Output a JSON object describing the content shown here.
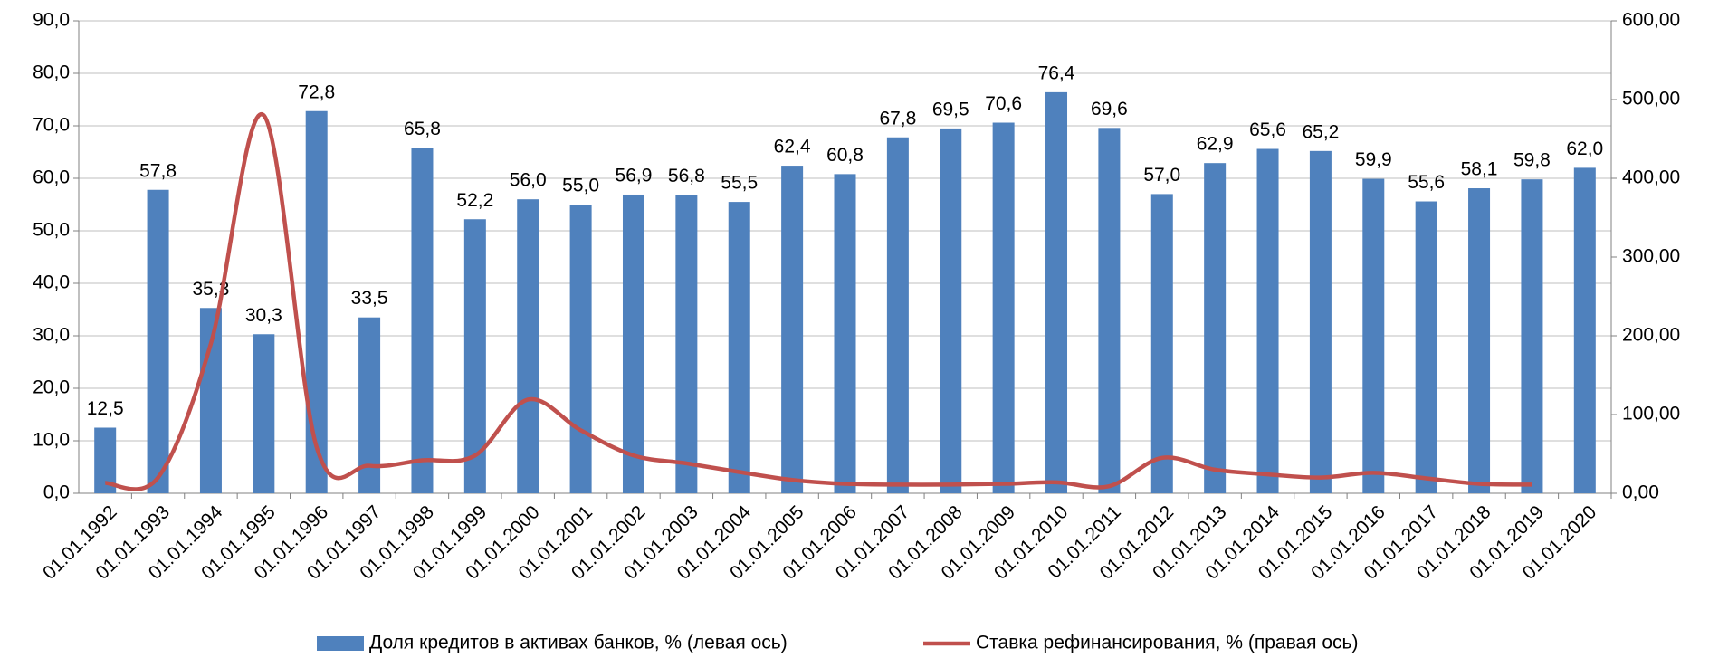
{
  "chart_data": {
    "type": "bar",
    "categories": [
      "01.01.1992",
      "01.01.1993",
      "01.01.1994",
      "01.01.1995",
      "01.01.1996",
      "01.01.1997",
      "01.01.1998",
      "01.01.1999",
      "01.01.2000",
      "01.01.2001",
      "01.01.2002",
      "01.01.2003",
      "01.01.2004",
      "01.01.2005",
      "01.01.2006",
      "01.01.2007",
      "01.01.2008",
      "01.01.2009",
      "01.01.2010",
      "01.01.2011",
      "01.01.2012",
      "01.01.2013",
      "01.01.2014",
      "01.01.2015",
      "01.01.2016",
      "01.01.2017",
      "01.01.2018",
      "01.01.2019",
      "01.01.2020"
    ],
    "series": [
      {
        "name": "Доля кредитов в активах банков, % (левая ось)",
        "type": "bar",
        "color": "#4f81bd",
        "values": [
          12.5,
          57.8,
          35.3,
          30.3,
          72.8,
          33.5,
          65.8,
          52.2,
          56.0,
          55.0,
          56.9,
          56.8,
          55.5,
          62.4,
          60.8,
          67.8,
          69.5,
          70.6,
          76.4,
          69.6,
          57.0,
          62.9,
          65.6,
          65.2,
          59.9,
          55.6,
          58.1,
          59.8,
          62.0
        ],
        "value_labels": [
          "12,5",
          "57,8",
          "35,3",
          "30,3",
          "72,8",
          "33,5",
          "65,8",
          "52,2",
          "56,0",
          "55,0",
          "56,9",
          "56,8",
          "55,5",
          "62,4",
          "60,8",
          "67,8",
          "69,5",
          "70,6",
          "76,4",
          "69,6",
          "57,0",
          "62,9",
          "65,6",
          "65,2",
          "59,9",
          "55,6",
          "58,1",
          "59,8",
          "62,0"
        ]
      },
      {
        "name": "Ставка рефинансирования, % (правая ось)",
        "type": "line",
        "axis": "y2",
        "color": "#c0504d",
        "values": [
          13,
          20,
          190,
          480,
          59,
          35,
          42,
          48,
          119,
          80,
          48,
          38,
          27,
          17,
          12,
          11,
          11,
          12,
          14,
          9,
          45,
          30,
          24,
          20,
          26,
          19,
          12,
          11,
          null
        ]
      }
    ],
    "ylim": [
      0,
      90
    ],
    "yticks": [
      {
        "value": 0,
        "label": "0,0"
      },
      {
        "value": 10,
        "label": "10,0"
      },
      {
        "value": 20,
        "label": "20,0"
      },
      {
        "value": 30,
        "label": "30,0"
      },
      {
        "value": 40,
        "label": "40,0"
      },
      {
        "value": 50,
        "label": "50,0"
      },
      {
        "value": 60,
        "label": "60,0"
      },
      {
        "value": 70,
        "label": "70,0"
      },
      {
        "value": 80,
        "label": "80,0"
      },
      {
        "value": 90,
        "label": "90,0"
      }
    ],
    "y2lim": [
      0,
      600
    ],
    "y2ticks": [
      {
        "value": 0,
        "label": "0,00"
      },
      {
        "value": 100,
        "label": "100,00"
      },
      {
        "value": 200,
        "label": "200,00"
      },
      {
        "value": 300,
        "label": "300,00"
      },
      {
        "value": 400,
        "label": "400,00"
      },
      {
        "value": 500,
        "label": "500,00"
      },
      {
        "value": 600,
        "label": "600,00"
      }
    ],
    "grid": true,
    "legend": "bottom"
  }
}
